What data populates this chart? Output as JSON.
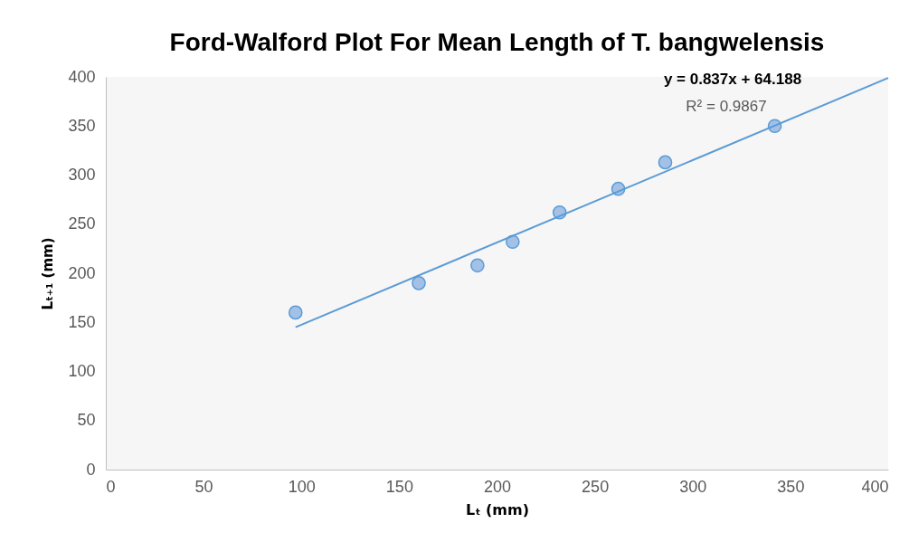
{
  "chart_data": {
    "type": "scatter",
    "title": "Ford-Walford Plot For Mean Length of T. bangwelensis",
    "xlabel": "Lₜ (mm)",
    "ylabel": "Lₜ₊₁ (mm)",
    "annotations": [
      "y = 0.837x + 64.188",
      "R² = 0.9867"
    ],
    "series": [
      {
        "color": "#5b9bd5",
        "marker": "circle",
        "x": [
          97,
          160,
          190,
          208,
          232,
          262,
          286,
          342
        ],
        "values": [
          160,
          190,
          208,
          232,
          262,
          286,
          313,
          350
        ]
      },
      {
        "type": "line",
        "color": "#5b9bd5",
        "x": [
          97,
          400
        ],
        "values": [
          145,
          399
        ]
      }
    ],
    "xlim": [
      0,
      400
    ],
    "xticks": [
      0,
      50,
      100,
      150,
      200,
      250,
      300,
      350,
      400
    ],
    "ylim": [
      0,
      400
    ],
    "yticks": [
      0,
      50,
      100,
      150,
      200,
      250,
      300,
      350,
      400
    ],
    "grid": false
  }
}
